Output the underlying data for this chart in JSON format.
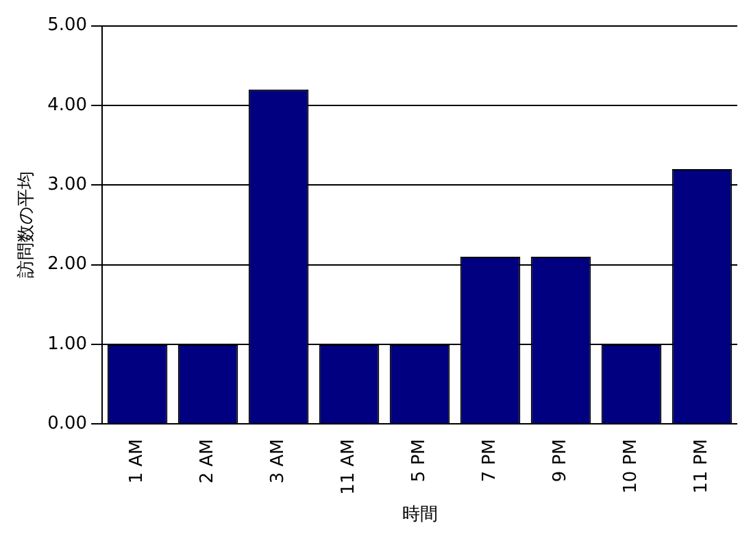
{
  "chart_data": {
    "type": "bar",
    "xlabel": "時間",
    "ylabel": "訪問数の平均",
    "categories": [
      "1 AM",
      "2 AM",
      "3 AM",
      "11 AM",
      "5 PM",
      "7 PM",
      "9 PM",
      "10 PM",
      "11 PM"
    ],
    "values": [
      1,
      1,
      4.2,
      1,
      1,
      2.1,
      2.1,
      1,
      3.2
    ],
    "color": "#000080",
    "ylim": [
      0,
      5
    ],
    "yticks": [
      {
        "value": 0,
        "label": "0.00"
      },
      {
        "value": 1,
        "label": "1.00"
      },
      {
        "value": 2,
        "label": "2.00"
      },
      {
        "value": 3,
        "label": "3.00"
      },
      {
        "value": 4,
        "label": "4.00"
      },
      {
        "value": 5,
        "label": "5.00"
      }
    ],
    "grid": "y",
    "legend": false
  }
}
